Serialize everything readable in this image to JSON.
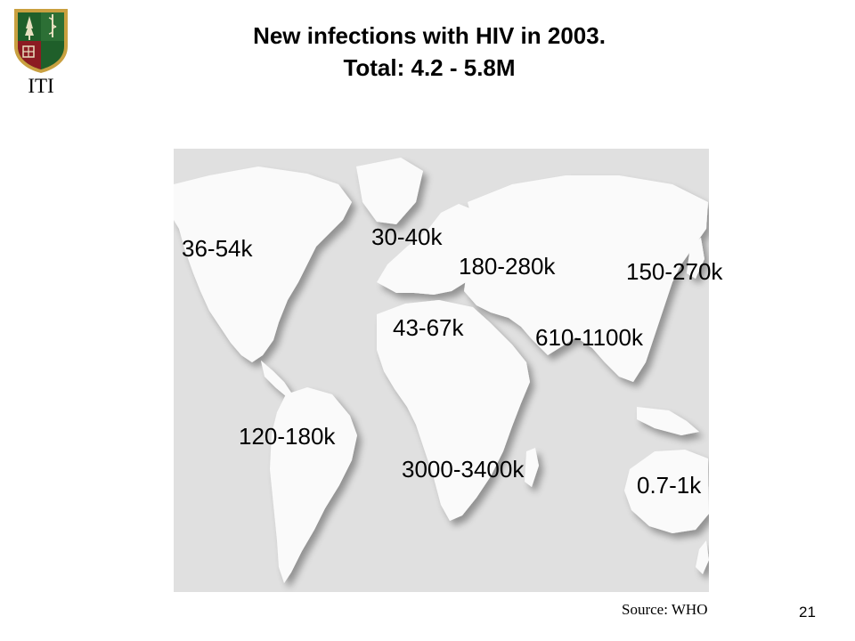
{
  "header": {
    "title_line1": "New infections with HIV in 2003.",
    "title_line2": "Total: 4.2 - 5.8M",
    "logo_text": "ITI"
  },
  "map": {
    "regions": [
      {
        "name": "north-america",
        "value": "36-54k"
      },
      {
        "name": "western-europe",
        "value": "30-40k"
      },
      {
        "name": "eastern-europe-central-asia",
        "value": "180-280k"
      },
      {
        "name": "east-asia",
        "value": "150-270k"
      },
      {
        "name": "north-africa-middle-east",
        "value": "43-67k"
      },
      {
        "name": "south-southeast-asia",
        "value": "610-1100k"
      },
      {
        "name": "latin-america",
        "value": "120-180k"
      },
      {
        "name": "sub-saharan-africa",
        "value": "3000-3400k"
      },
      {
        "name": "oceania",
        "value": "0.7-1k"
      }
    ]
  },
  "footer": {
    "source": "Source: WHO",
    "page_number": "21"
  },
  "colors": {
    "ocean": "#e0e0e0",
    "land": "#fafafa",
    "shield_green": "#1f5f2a",
    "shield_red": "#8c1b22",
    "shield_gold": "#c9a040"
  }
}
